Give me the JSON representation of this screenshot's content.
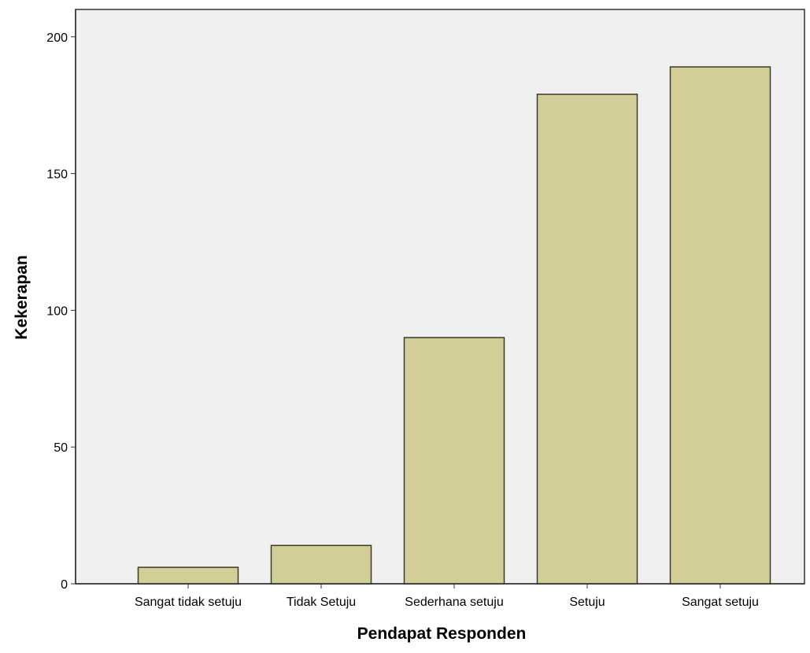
{
  "chart_data": {
    "type": "bar",
    "title": "",
    "xlabel": "Pendapat Responden",
    "ylabel": "Kekerapan",
    "categories": [
      "Sangat tidak setuju",
      "Tidak Setuju",
      "Sederhana setuju",
      "Setuju",
      "Sangat setuju"
    ],
    "values": [
      6,
      14,
      90,
      179,
      189
    ],
    "ylim": [
      0,
      210
    ],
    "yticks": [
      0,
      50,
      100,
      150,
      200
    ],
    "grid": false,
    "legend": "none",
    "colors": {
      "plot_background": "#f0f0f0",
      "bar_fill": "#d3ce97",
      "bar_stroke": "#3a3a2a",
      "axis": "#333333"
    }
  }
}
